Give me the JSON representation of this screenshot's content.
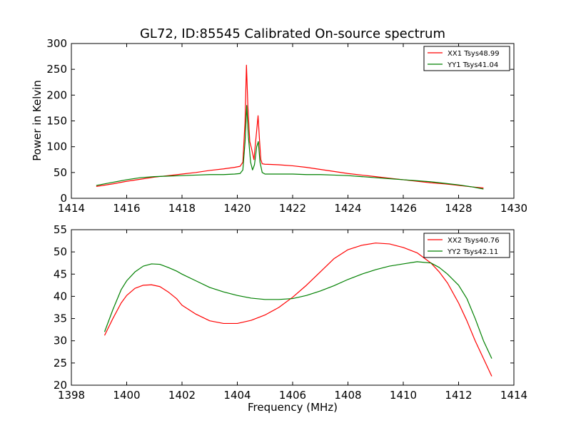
{
  "chart_data": [
    {
      "type": "line",
      "title": "GL72, ID:85545 Calibrated On-source spectrum",
      "xlabel": "",
      "ylabel": "Power in Kelvin",
      "xlim": [
        1414,
        1430
      ],
      "ylim": [
        0,
        300
      ],
      "xticks": [
        "1414",
        "1416",
        "1418",
        "1420",
        "1422",
        "1424",
        "1426",
        "1428",
        "1430"
      ],
      "yticks": [
        "0",
        "50",
        "100",
        "150",
        "200",
        "250",
        "300"
      ],
      "grid": false,
      "legend_position": "top-right",
      "series": [
        {
          "name": "XX1 Tsys48.99",
          "color": "#ff0000",
          "x": [
            1414.9,
            1415.5,
            1416,
            1416.5,
            1417,
            1417.5,
            1418,
            1418.5,
            1419,
            1419.5,
            1419.9,
            1420.1,
            1420.2,
            1420.28,
            1420.33,
            1420.38,
            1420.45,
            1420.52,
            1420.6,
            1420.68,
            1420.75,
            1420.8,
            1420.85,
            1420.9,
            1421,
            1421.5,
            1422,
            1422.5,
            1423,
            1423.5,
            1424,
            1424.5,
            1425,
            1425.5,
            1426,
            1426.5,
            1427,
            1427.5,
            1428,
            1428.5,
            1428.9
          ],
          "y": [
            23,
            28,
            33,
            37,
            41,
            44,
            47,
            50,
            54,
            57,
            60,
            62,
            70,
            150,
            258,
            180,
            110,
            95,
            75,
            120,
            160,
            115,
            75,
            67,
            66,
            65,
            63,
            60,
            56,
            52,
            48,
            45,
            42,
            39,
            36,
            33,
            30,
            28,
            25,
            22,
            20
          ]
        },
        {
          "name": "YY1 Tsys41.04",
          "color": "#008000",
          "x": [
            1414.9,
            1415.5,
            1416,
            1416.5,
            1417,
            1417.5,
            1418,
            1418.5,
            1419,
            1419.5,
            1419.9,
            1420.1,
            1420.2,
            1420.28,
            1420.34,
            1420.4,
            1420.48,
            1420.55,
            1420.62,
            1420.7,
            1420.76,
            1420.82,
            1420.9,
            1421,
            1421.5,
            1422,
            1422.5,
            1423,
            1423.5,
            1424,
            1424.5,
            1425,
            1425.5,
            1426,
            1426.5,
            1427,
            1427.5,
            1428,
            1428.5,
            1428.9
          ],
          "y": [
            25,
            31,
            36,
            40,
            42,
            43,
            44,
            45,
            46,
            46,
            47,
            48,
            55,
            110,
            180,
            120,
            70,
            55,
            65,
            100,
            110,
            70,
            50,
            47,
            47,
            47,
            46,
            46,
            45,
            44,
            42,
            40,
            38,
            36,
            34,
            32,
            29,
            26,
            22,
            18
          ]
        }
      ]
    },
    {
      "type": "line",
      "title": "",
      "xlabel": "Frequency (MHz)",
      "ylabel": "",
      "xlim": [
        1398,
        1414
      ],
      "ylim": [
        20,
        55
      ],
      "xticks": [
        "1398",
        "1400",
        "1402",
        "1404",
        "1406",
        "1408",
        "1410",
        "1412",
        "1414"
      ],
      "yticks": [
        "20",
        "25",
        "30",
        "35",
        "40",
        "45",
        "50",
        "55"
      ],
      "grid": false,
      "legend_position": "top-right",
      "series": [
        {
          "name": "XX2 Tsys40.76",
          "color": "#ff0000",
          "x": [
            1399.2,
            1399.5,
            1399.8,
            1400,
            1400.3,
            1400.6,
            1400.9,
            1401.2,
            1401.5,
            1401.8,
            1402,
            1402.5,
            1403,
            1403.5,
            1404,
            1404.5,
            1405,
            1405.5,
            1406,
            1406.5,
            1407,
            1407.5,
            1408,
            1408.5,
            1409,
            1409.5,
            1410,
            1410.5,
            1411,
            1411.3,
            1411.6,
            1412,
            1412.3,
            1412.6,
            1412.9,
            1413.2
          ],
          "y": [
            31.2,
            35,
            38.5,
            40.2,
            41.8,
            42.5,
            42.6,
            42.2,
            41,
            39.5,
            38,
            36,
            34.5,
            33.9,
            33.9,
            34.6,
            35.8,
            37.5,
            39.8,
            42.5,
            45.5,
            48.5,
            50.5,
            51.5,
            52,
            51.8,
            51,
            49.8,
            47.5,
            45.5,
            43,
            38.5,
            34.5,
            30,
            26,
            22
          ]
        },
        {
          "name": "YY2 Tsys42.11",
          "color": "#008000",
          "x": [
            1399.2,
            1399.5,
            1399.8,
            1400,
            1400.3,
            1400.6,
            1400.9,
            1401.2,
            1401.5,
            1401.8,
            1402,
            1402.5,
            1403,
            1403.5,
            1404,
            1404.5,
            1405,
            1405.5,
            1406,
            1406.5,
            1407,
            1407.5,
            1408,
            1408.5,
            1409,
            1409.5,
            1410,
            1410.5,
            1411,
            1411.3,
            1411.6,
            1412,
            1412.3,
            1412.6,
            1412.9,
            1413.2
          ],
          "y": [
            32,
            37,
            41.5,
            43.5,
            45.5,
            46.8,
            47.3,
            47.2,
            46.5,
            45.7,
            45,
            43.5,
            42,
            41,
            40.2,
            39.6,
            39.3,
            39.3,
            39.5,
            40.2,
            41.2,
            42.4,
            43.8,
            45,
            46,
            46.8,
            47.3,
            47.8,
            47.5,
            46.5,
            45,
            42.5,
            39.5,
            35,
            30,
            26
          ]
        }
      ]
    }
  ]
}
